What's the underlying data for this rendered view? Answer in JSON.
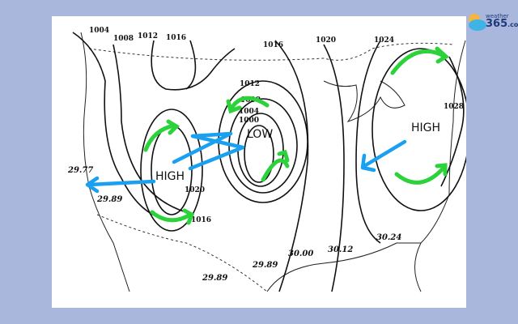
{
  "map": {
    "isobar_labels_mb": [
      "1004",
      "1008",
      "1012",
      "1016",
      "1016",
      "1020",
      "1024",
      "1028",
      "1012",
      "1008",
      "1004",
      "1000",
      "1020",
      "1016"
    ],
    "pressure_labels_inhg": [
      "29.77",
      "29.89",
      "29.89",
      "29.89",
      "30.00",
      "30.12",
      "30.24"
    ],
    "systems": [
      "HIGH",
      "LOW",
      "HIGH"
    ],
    "annotation_colors": {
      "circulation_arrows": "#2bd23a",
      "flow_arrows": "#1aa0f0"
    }
  },
  "logo": {
    "brand_top": "weather",
    "brand_num": "365",
    "brand_suffix": ".com"
  }
}
